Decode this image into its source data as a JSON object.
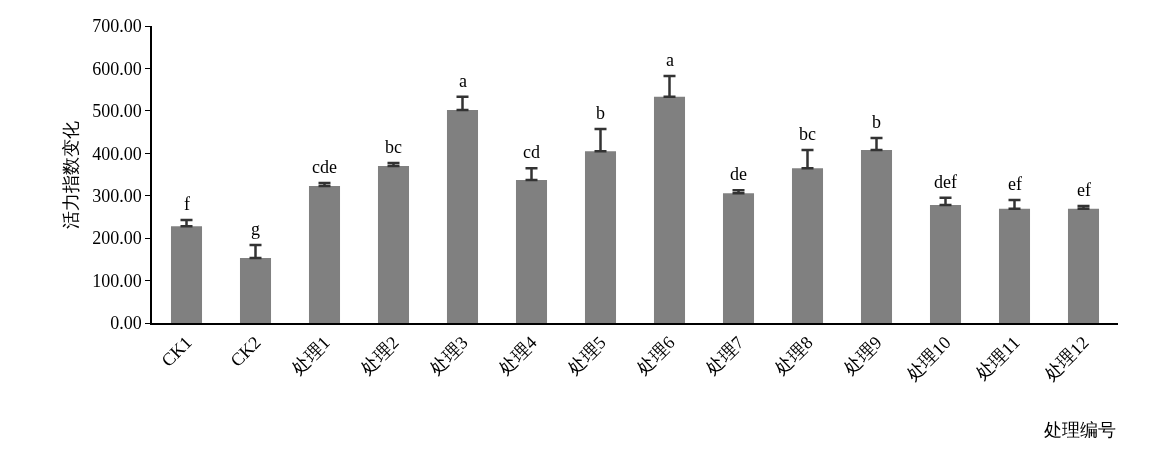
{
  "chart_data": {
    "type": "bar",
    "ylabel": "活力指数变化",
    "xlabel": "处理编号",
    "categories": [
      "CK1",
      "CK2",
      "处理1",
      "处理2",
      "处理3",
      "处理4",
      "处理5",
      "处理6",
      "处理7",
      "处理8",
      "处理9",
      "处理10",
      "处理11",
      "处理12"
    ],
    "values": [
      228,
      153,
      323,
      370,
      502,
      337,
      405,
      533,
      306,
      365,
      408,
      278,
      269,
      269
    ],
    "errors": [
      [
        228,
        243
      ],
      [
        153,
        184
      ],
      [
        323,
        330
      ],
      [
        370,
        377
      ],
      [
        502,
        533
      ],
      [
        337,
        365
      ],
      [
        405,
        457
      ],
      [
        533,
        582
      ],
      [
        306,
        313
      ],
      [
        365,
        408
      ],
      [
        408,
        436
      ],
      [
        278,
        295
      ],
      [
        269,
        290
      ],
      [
        269,
        276
      ]
    ],
    "value_labels": [
      "f",
      "g",
      "cde",
      "bc",
      "a",
      "cd",
      "b",
      "a",
      "de",
      "bc",
      "b",
      "def",
      "ef",
      "ef"
    ],
    "color": "#808080",
    "ylim": [
      0,
      700
    ],
    "yticks": [
      {
        "value": 0,
        "label": "0.00"
      },
      {
        "value": 100,
        "label": "100.00"
      },
      {
        "value": 200,
        "label": "200.00"
      },
      {
        "value": 300,
        "label": "300.00"
      },
      {
        "value": 400,
        "label": "400.00"
      },
      {
        "value": 500,
        "label": "500.00"
      },
      {
        "value": 600,
        "label": "600.00"
      },
      {
        "value": 700,
        "label": "700.00"
      }
    ],
    "grid": false,
    "legend": false
  }
}
